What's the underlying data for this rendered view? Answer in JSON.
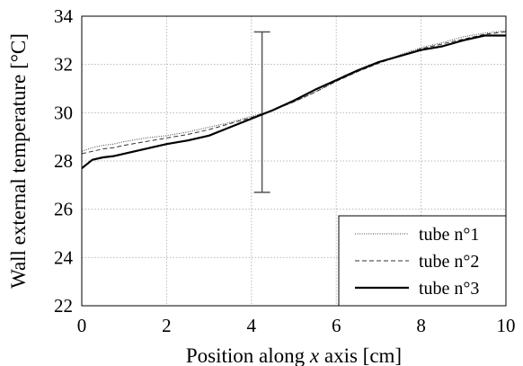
{
  "chart_data": {
    "type": "line",
    "xlabel_prefix": "Position along ",
    "xlabel_var": "x",
    "xlabel_suffix": " axis [cm]",
    "ylabel": "Wall external temperature [°C]",
    "xlim": [
      0,
      10
    ],
    "ylim": [
      22,
      34
    ],
    "x_ticks": [
      0,
      2,
      4,
      6,
      8,
      10
    ],
    "y_ticks": [
      22,
      24,
      26,
      28,
      30,
      32,
      34
    ],
    "x_tick_labels": [
      "0",
      "2",
      "4",
      "6",
      "8",
      "10"
    ],
    "y_tick_labels": [
      "22",
      "24",
      "26",
      "28",
      "30",
      "32",
      "34"
    ],
    "grid": true,
    "legend_position": "bottom-right",
    "error_bar": {
      "x": 4.25,
      "y_low": 26.7,
      "y_high": 33.35
    },
    "series": [
      {
        "name": "tube n°1",
        "style": "dotted",
        "x": [
          0,
          0.25,
          0.5,
          0.75,
          1,
          1.5,
          2,
          2.5,
          3,
          3.5,
          4,
          4.5,
          5,
          5.5,
          6,
          6.5,
          7,
          7.5,
          8,
          8.5,
          9,
          9.5,
          10
        ],
        "y": [
          28.4,
          28.55,
          28.65,
          28.7,
          28.8,
          28.95,
          29.05,
          29.2,
          29.4,
          29.6,
          29.85,
          30.1,
          30.45,
          30.85,
          31.3,
          31.7,
          32.05,
          32.4,
          32.7,
          32.9,
          33.15,
          33.3,
          33.4
        ]
      },
      {
        "name": "tube n°2",
        "style": "dashed",
        "x": [
          0,
          0.25,
          0.5,
          0.75,
          1,
          1.5,
          2,
          2.5,
          3,
          3.5,
          4,
          4.5,
          5,
          5.5,
          6,
          6.5,
          7,
          7.5,
          8,
          8.5,
          9,
          9.5,
          10
        ],
        "y": [
          28.3,
          28.4,
          28.5,
          28.55,
          28.65,
          28.8,
          28.95,
          29.1,
          29.3,
          29.55,
          29.8,
          30.1,
          30.45,
          30.85,
          31.3,
          31.7,
          32.05,
          32.35,
          32.65,
          32.85,
          33.05,
          33.25,
          33.35
        ]
      },
      {
        "name": "tube n°3",
        "style": "solid",
        "x": [
          0,
          0.25,
          0.5,
          0.75,
          1,
          1.5,
          2,
          2.5,
          3,
          3.5,
          4,
          4.5,
          5,
          5.5,
          6,
          6.5,
          7,
          7.5,
          8,
          8.5,
          9,
          9.5,
          10
        ],
        "y": [
          27.7,
          28.05,
          28.15,
          28.2,
          28.3,
          28.5,
          28.7,
          28.85,
          29.05,
          29.4,
          29.75,
          30.1,
          30.5,
          30.95,
          31.35,
          31.75,
          32.1,
          32.35,
          32.6,
          32.75,
          33.0,
          33.2,
          33.2
        ]
      }
    ]
  }
}
